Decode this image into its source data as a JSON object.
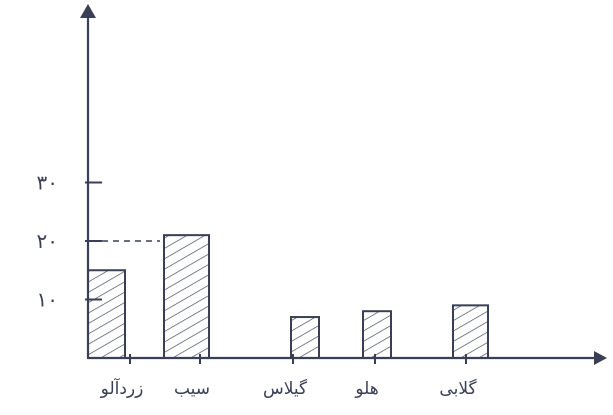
{
  "chart_data": {
    "type": "bar",
    "categories": [
      "زردآلو",
      "سیب",
      "گیلاس",
      "هلو",
      "گلابی"
    ],
    "values": [
      15,
      21,
      7,
      8,
      9
    ],
    "yticks": [
      10,
      20,
      30
    ],
    "ytick_labels": [
      "۱۰",
      "۲۰",
      "۳۰"
    ],
    "ylim": [
      0,
      40
    ],
    "title": "",
    "xlabel": "",
    "ylabel": "",
    "grid": false,
    "bar_style": "hatched",
    "colors": {
      "ink": "#3a3f55"
    }
  }
}
